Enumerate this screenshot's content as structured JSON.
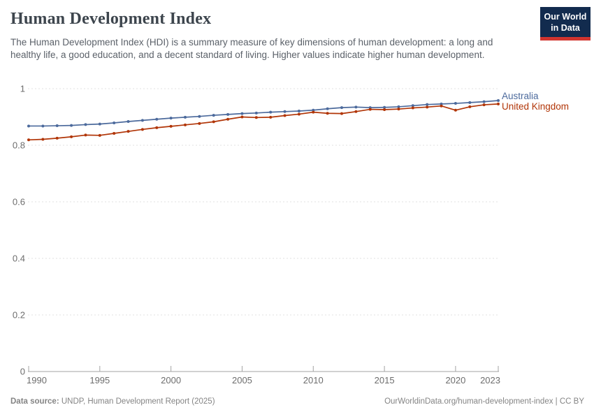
{
  "header": {
    "title": "Human Development Index",
    "subtitle": "The Human Development Index (HDI) is a summary measure of key dimensions of human development: a long and healthy life, a good education, and a decent standard of living. Higher values indicate higher human development.",
    "logo_line1": "Our World",
    "logo_line2": "in Data"
  },
  "footer": {
    "source_label": "Data source:",
    "source_text": " UNDP, Human Development Report (2025)",
    "link_text": "OurWorldinData.org/human-development-index | CC BY"
  },
  "colors": {
    "australia": "#4C6A9C",
    "united_kingdom": "#B13507",
    "axis": "#a3a3a3",
    "gridline": "#e2e2e2",
    "tick_label": "#6d6d6d",
    "logo_bg": "#122b4e",
    "logo_stripe": "#d1342f"
  },
  "chart_data": {
    "type": "line",
    "title": "Human Development Index",
    "xlabel": "",
    "ylabel": "",
    "x": [
      1990,
      1991,
      1992,
      1993,
      1994,
      1995,
      1996,
      1997,
      1998,
      1999,
      2000,
      2001,
      2002,
      2003,
      2004,
      2005,
      2006,
      2007,
      2008,
      2009,
      2010,
      2011,
      2012,
      2013,
      2014,
      2015,
      2016,
      2017,
      2018,
      2019,
      2020,
      2021,
      2022,
      2023
    ],
    "series": [
      {
        "name": "Australia",
        "color": "#4C6A9C",
        "values": [
          0.868,
          0.868,
          0.869,
          0.87,
          0.873,
          0.875,
          0.879,
          0.884,
          0.888,
          0.892,
          0.896,
          0.899,
          0.902,
          0.906,
          0.909,
          0.912,
          0.914,
          0.917,
          0.919,
          0.921,
          0.924,
          0.929,
          0.933,
          0.935,
          0.933,
          0.934,
          0.936,
          0.94,
          0.944,
          0.946,
          0.948,
          0.951,
          0.954,
          0.958
        ]
      },
      {
        "name": "United Kingdom",
        "color": "#B13507",
        "values": [
          0.819,
          0.821,
          0.825,
          0.83,
          0.836,
          0.835,
          0.842,
          0.849,
          0.856,
          0.862,
          0.867,
          0.872,
          0.877,
          0.883,
          0.892,
          0.9,
          0.898,
          0.899,
          0.905,
          0.91,
          0.917,
          0.913,
          0.912,
          0.919,
          0.927,
          0.926,
          0.928,
          0.932,
          0.935,
          0.939,
          0.924,
          0.936,
          0.943,
          0.946
        ]
      }
    ],
    "xticks": [
      1990,
      1995,
      2000,
      2005,
      2010,
      2015,
      2020,
      2023
    ],
    "yticks": [
      0,
      0.2,
      0.4,
      0.6,
      0.8,
      1
    ],
    "ytick_labels": [
      "0",
      "0.2",
      "0.4",
      "0.6",
      "0.8",
      "1"
    ],
    "xlim": [
      1990,
      2023
    ],
    "ylim": [
      0,
      1
    ],
    "grid": "horizontal-dashed",
    "legend_position": "right-of-line-ends"
  }
}
